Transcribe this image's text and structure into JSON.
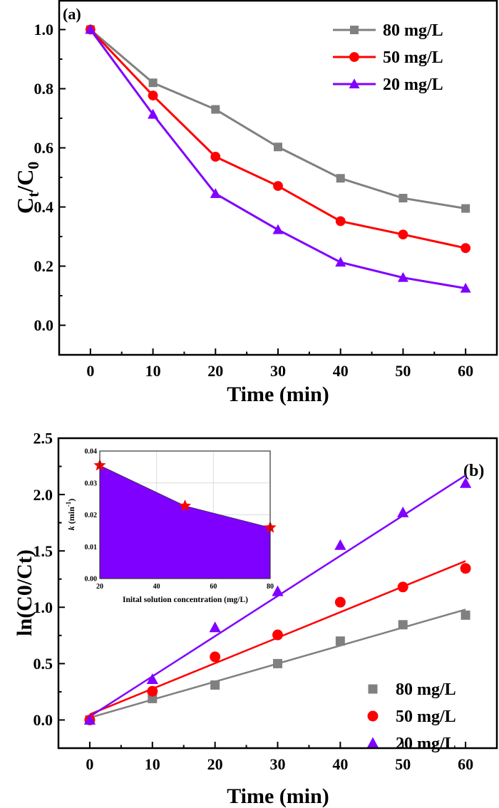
{
  "chart_data": [
    {
      "type": "line",
      "panel_label": "(a)",
      "xlabel": "Time (min)",
      "ylabel_main": "C",
      "ylabel_sub1": "t",
      "ylabel_mid": "/C",
      "ylabel_sub2": "0",
      "xlim": [
        -5,
        65
      ],
      "ylim": [
        -0.1,
        1.1
      ],
      "xticks": [
        0,
        10,
        20,
        30,
        40,
        50,
        60
      ],
      "xtick_labels": [
        "0",
        "10",
        "20",
        "30",
        "40",
        "50",
        "60"
      ],
      "yticks": [
        0.0,
        0.2,
        0.4,
        0.6,
        0.8,
        1.0
      ],
      "ytick_labels": [
        "0.0",
        "0.2",
        "0.4",
        "0.6",
        "0.8",
        "1.0"
      ],
      "grid": false,
      "legend_position": "top-right",
      "x": [
        0,
        10,
        20,
        30,
        40,
        50,
        60
      ],
      "series": [
        {
          "name": "80 mg/L",
          "marker": "square",
          "color": "#808080",
          "values": [
            1.0,
            0.82,
            0.73,
            0.603,
            0.497,
            0.43,
            0.395
          ]
        },
        {
          "name": "50 mg/L",
          "marker": "circle",
          "color": "#ff0000",
          "values": [
            1.0,
            0.777,
            0.57,
            0.471,
            0.352,
            0.307,
            0.261
          ]
        },
        {
          "name": "20 mg/L",
          "marker": "triangle",
          "color": "#8000ff",
          "values": [
            1.0,
            0.713,
            0.445,
            0.323,
            0.213,
            0.161,
            0.125
          ]
        }
      ]
    },
    {
      "type": "scatter",
      "panel_label": "(b)",
      "xlabel": "Time (min)",
      "ylabel": "ln(C0/Ct)",
      "xlim": [
        -5,
        65
      ],
      "ylim": [
        -0.25,
        2.5
      ],
      "xticks": [
        0,
        10,
        20,
        30,
        40,
        50,
        60
      ],
      "xtick_labels": [
        "0",
        "10",
        "20",
        "30",
        "40",
        "50",
        "60"
      ],
      "yticks": [
        0.0,
        0.5,
        1.0,
        1.5,
        2.0,
        2.5
      ],
      "ytick_labels": [
        "0.0",
        "0.5",
        "1.0",
        "1.5",
        "2.0",
        "2.5"
      ],
      "grid": false,
      "legend_position": "bottom-right",
      "x": [
        0,
        10,
        20,
        30,
        40,
        50,
        60
      ],
      "series": [
        {
          "name": "80 mg/L",
          "marker": "square",
          "color": "#808080",
          "values": [
            0,
            0.19,
            0.31,
            0.5,
            0.7,
            0.845,
            0.93
          ],
          "fit": [
            0.02,
            0.98
          ]
        },
        {
          "name": "50 mg/L",
          "marker": "circle",
          "color": "#ff0000",
          "values": [
            0,
            0.255,
            0.56,
            0.755,
            1.045,
            1.18,
            1.345
          ],
          "fit": [
            0.05,
            1.41
          ]
        },
        {
          "name": "20 mg/L",
          "marker": "triangle",
          "color": "#8000ff",
          "values": [
            0,
            0.36,
            0.82,
            1.14,
            1.55,
            1.84,
            2.1
          ],
          "fit": [
            0.03,
            2.17
          ]
        }
      ]
    },
    {
      "type": "area",
      "role": "inset",
      "xlabel": "Inital solution concentration (mg/L)",
      "ylabel_italic": "k",
      "ylabel_rest": " (min",
      "ylabel_sup": "-1",
      "ylabel_close": ")",
      "xlim": [
        20,
        80
      ],
      "ylim": [
        0,
        0.04
      ],
      "xticks": [
        20,
        40,
        60,
        80
      ],
      "xtick_labels": [
        "20",
        "40",
        "60",
        "80"
      ],
      "yticks": [
        0,
        0.01,
        0.02,
        0.03,
        0.04
      ],
      "ytick_labels": [
        "0.00",
        "0.01",
        "0.02",
        "0.03",
        "0.04"
      ],
      "grid": true,
      "fill_color": "#7f00ff",
      "marker": "star",
      "marker_color": "#ff0000",
      "x": [
        20,
        50,
        80
      ],
      "values": [
        0.0355,
        0.0228,
        0.016
      ]
    }
  ]
}
